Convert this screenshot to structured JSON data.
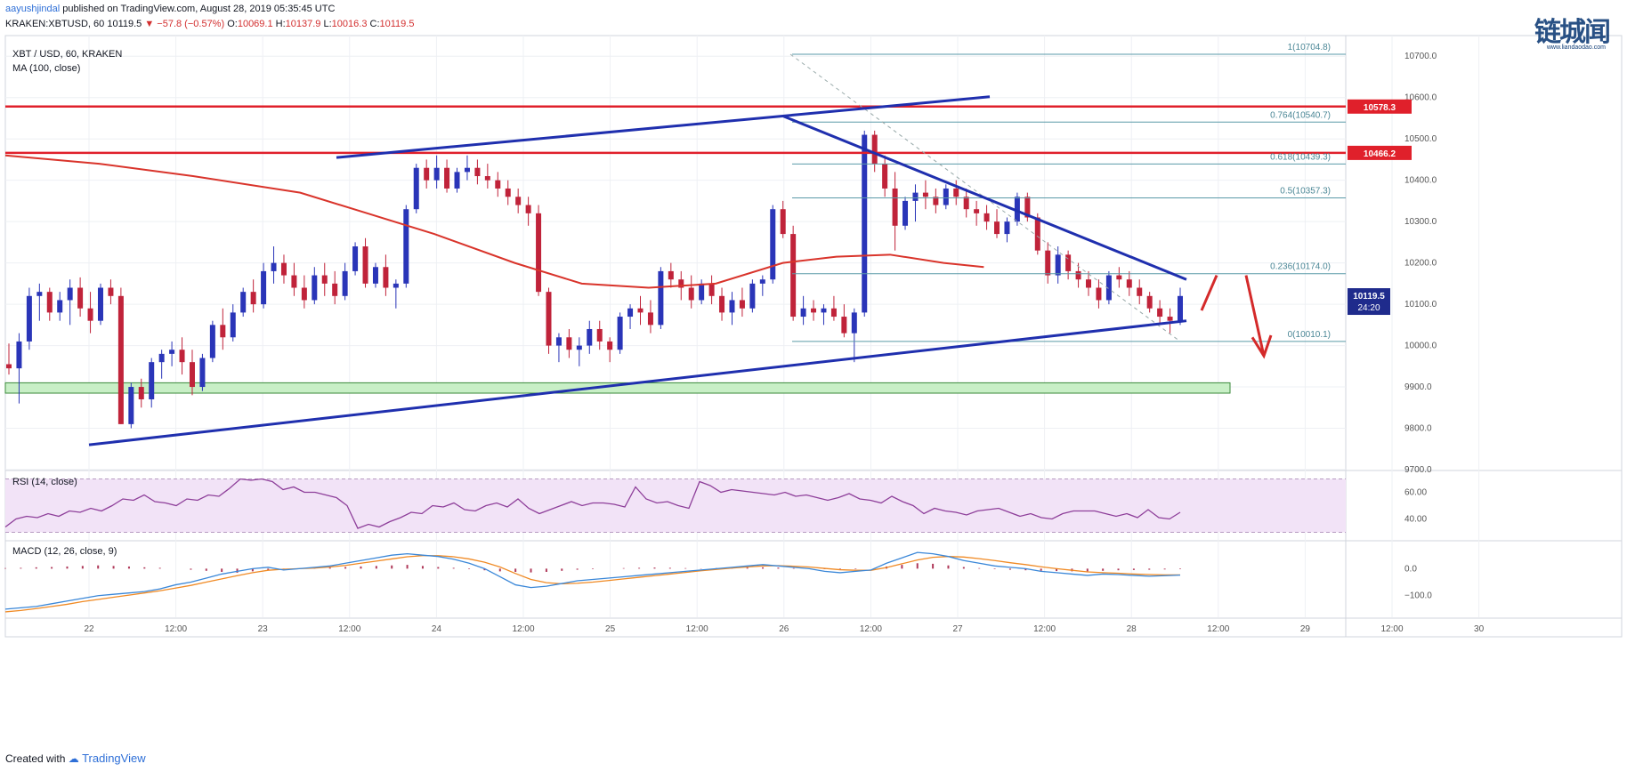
{
  "header": {
    "author": "aayushjindal",
    "published_text": "published on TradingView.com, August 28, 2019 05:35:45 UTC",
    "symbol": "KRAKEN:XBTUSD, 60",
    "last": "10119.5",
    "change": "−57.8 (−0.57%)",
    "change_arrow": "▼",
    "o_label": "O:",
    "o_value": "10069.1",
    "h_label": "H:",
    "h_value": "10137.9",
    "l_label": "L:",
    "l_value": "10016.3",
    "c_label": "C:",
    "c_value": "10119.5"
  },
  "legend": {
    "title": "XBT / USD, 60, KRAKEN",
    "ma": "MA (100, close)",
    "rsi": "RSI (14, close)",
    "macd": "MACD (12, 26, close, 9)"
  },
  "footer": {
    "created_with": "Created with",
    "brand": "TradingView"
  },
  "logo": {
    "text": "链城闻",
    "sub": "www.liandaodao.com"
  },
  "colors": {
    "up": "#2a35b8",
    "down": "#c0233a",
    "ma": "#d9342b",
    "trendline": "#1f2fae",
    "resistance": "#e0202b",
    "support_zone_fill": "#c8efc6",
    "support_zone_border": "#3a8a3a",
    "fib": "#5a9aa8",
    "rsi": "#8e3f9a",
    "rsi_band": "#f2e3f7",
    "macd": "#3a87d8",
    "signal": "#f08a24",
    "hist": "#b03a5a",
    "arrow": "#d42a2a"
  },
  "chart_data": [
    {
      "type": "candlestick",
      "name": "XBT / USD, 60, KRAKEN",
      "xlabels": [
        "22",
        "12:00",
        "23",
        "12:00",
        "24",
        "12:00",
        "25",
        "12:00",
        "26",
        "12:00",
        "27",
        "12:00",
        "28",
        "12:00",
        "29",
        "12:00",
        "30"
      ],
      "ylim": [
        9700,
        10750
      ],
      "yticks": [
        9700,
        9800,
        9900,
        10000,
        10100,
        10200,
        10300,
        10400,
        10500,
        10600,
        10700
      ],
      "ytick_labels": [
        "9700.0",
        "9800.0",
        "9900.0",
        "10000.0",
        "10100.0",
        "10200.0",
        "10300.0",
        "10400.0",
        "10500.0",
        "10600.0",
        "10700.0"
      ],
      "candles": [
        [
          9955,
          10005,
          9930,
          9945
        ],
        [
          9945,
          10030,
          9860,
          10010
        ],
        [
          10010,
          10140,
          9990,
          10120
        ],
        [
          10120,
          10150,
          10060,
          10130
        ],
        [
          10130,
          10140,
          10060,
          10080
        ],
        [
          10080,
          10130,
          10060,
          10110
        ],
        [
          10110,
          10160,
          10050,
          10140
        ],
        [
          10140,
          10165,
          10070,
          10090
        ],
        [
          10090,
          10130,
          10030,
          10060
        ],
        [
          10060,
          10150,
          10050,
          10140
        ],
        [
          10140,
          10160,
          10100,
          10120
        ],
        [
          10120,
          10140,
          9810,
          9810
        ],
        [
          9810,
          9910,
          9800,
          9900
        ],
        [
          9900,
          9920,
          9850,
          9870
        ],
        [
          9870,
          9970,
          9850,
          9960
        ],
        [
          9960,
          9990,
          9920,
          9980
        ],
        [
          9980,
          10010,
          9950,
          9990
        ],
        [
          9990,
          10020,
          9930,
          9960
        ],
        [
          9960,
          9990,
          9880,
          9900
        ],
        [
          9900,
          9980,
          9890,
          9970
        ],
        [
          9970,
          10060,
          9960,
          10050
        ],
        [
          10050,
          10090,
          9990,
          10020
        ],
        [
          10020,
          10100,
          10010,
          10080
        ],
        [
          10080,
          10140,
          10070,
          10130
        ],
        [
          10130,
          10160,
          10080,
          10100
        ],
        [
          10100,
          10200,
          10090,
          10180
        ],
        [
          10180,
          10240,
          10150,
          10200
        ],
        [
          10200,
          10220,
          10150,
          10170
        ],
        [
          10170,
          10200,
          10120,
          10140
        ],
        [
          10140,
          10170,
          10090,
          10110
        ],
        [
          10110,
          10190,
          10100,
          10170
        ],
        [
          10170,
          10200,
          10120,
          10150
        ],
        [
          10150,
          10180,
          10100,
          10120
        ],
        [
          10120,
          10200,
          10110,
          10180
        ],
        [
          10180,
          10250,
          10170,
          10240
        ],
        [
          10240,
          10260,
          10140,
          10150
        ],
        [
          10150,
          10200,
          10140,
          10190
        ],
        [
          10190,
          10220,
          10120,
          10140
        ],
        [
          10140,
          10160,
          10090,
          10150
        ],
        [
          10150,
          10340,
          10140,
          10330
        ],
        [
          10330,
          10440,
          10320,
          10430
        ],
        [
          10430,
          10450,
          10380,
          10400
        ],
        [
          10400,
          10460,
          10380,
          10430
        ],
        [
          10430,
          10450,
          10370,
          10380
        ],
        [
          10380,
          10430,
          10370,
          10420
        ],
        [
          10420,
          10460,
          10400,
          10430
        ],
        [
          10430,
          10450,
          10390,
          10410
        ],
        [
          10410,
          10440,
          10380,
          10400
        ],
        [
          10400,
          10420,
          10360,
          10380
        ],
        [
          10380,
          10400,
          10340,
          10360
        ],
        [
          10360,
          10380,
          10320,
          10340
        ],
        [
          10340,
          10360,
          10290,
          10320
        ],
        [
          10320,
          10340,
          10120,
          10130
        ],
        [
          10130,
          10140,
          9980,
          10000
        ],
        [
          10000,
          10030,
          9960,
          10020
        ],
        [
          10020,
          10040,
          9970,
          9990
        ],
        [
          9990,
          10020,
          9950,
          10000
        ],
        [
          10000,
          10060,
          9980,
          10040
        ],
        [
          10040,
          10060,
          9990,
          10010
        ],
        [
          10010,
          10020,
          9960,
          9990
        ],
        [
          9990,
          10080,
          9980,
          10070
        ],
        [
          10070,
          10100,
          10040,
          10090
        ],
        [
          10090,
          10120,
          10050,
          10080
        ],
        [
          10080,
          10110,
          10030,
          10050
        ],
        [
          10050,
          10190,
          10040,
          10180
        ],
        [
          10180,
          10200,
          10140,
          10160
        ],
        [
          10160,
          10180,
          10110,
          10140
        ],
        [
          10140,
          10170,
          10090,
          10110
        ],
        [
          10110,
          10160,
          10100,
          10150
        ],
        [
          10150,
          10170,
          10100,
          10120
        ],
        [
          10120,
          10140,
          10060,
          10080
        ],
        [
          10080,
          10130,
          10050,
          10110
        ],
        [
          10110,
          10140,
          10070,
          10090
        ],
        [
          10090,
          10160,
          10080,
          10150
        ],
        [
          10150,
          10170,
          10120,
          10160
        ],
        [
          10160,
          10340,
          10150,
          10330
        ],
        [
          10330,
          10350,
          10260,
          10270
        ],
        [
          10270,
          10290,
          10060,
          10070
        ],
        [
          10070,
          10120,
          10050,
          10090
        ],
        [
          10090,
          10110,
          10060,
          10080
        ],
        [
          10080,
          10100,
          10050,
          10090
        ],
        [
          10090,
          10120,
          10060,
          10070
        ],
        [
          10070,
          10100,
          10020,
          10030
        ],
        [
          10030,
          10090,
          9960,
          10080
        ],
        [
          10080,
          10520,
          10070,
          10510
        ],
        [
          10510,
          10520,
          10420,
          10440
        ],
        [
          10440,
          10460,
          10360,
          10380
        ],
        [
          10380,
          10420,
          10230,
          10290
        ],
        [
          10290,
          10360,
          10280,
          10350
        ],
        [
          10350,
          10390,
          10300,
          10370
        ],
        [
          10370,
          10400,
          10330,
          10360
        ],
        [
          10360,
          10380,
          10320,
          10340
        ],
        [
          10340,
          10390,
          10330,
          10380
        ],
        [
          10380,
          10400,
          10340,
          10360
        ],
        [
          10360,
          10380,
          10310,
          10330
        ],
        [
          10330,
          10350,
          10290,
          10320
        ],
        [
          10320,
          10340,
          10280,
          10300
        ],
        [
          10300,
          10330,
          10260,
          10270
        ],
        [
          10270,
          10310,
          10250,
          10300
        ],
        [
          10300,
          10370,
          10290,
          10360
        ],
        [
          10360,
          10370,
          10300,
          10310
        ],
        [
          10310,
          10320,
          10220,
          10230
        ],
        [
          10230,
          10250,
          10150,
          10170
        ],
        [
          10170,
          10240,
          10150,
          10220
        ],
        [
          10220,
          10230,
          10160,
          10180
        ],
        [
          10180,
          10200,
          10140,
          10160
        ],
        [
          10160,
          10180,
          10120,
          10140
        ],
        [
          10140,
          10160,
          10090,
          10110
        ],
        [
          10110,
          10180,
          10100,
          10170
        ],
        [
          10170,
          10190,
          10140,
          10160
        ],
        [
          10160,
          10180,
          10120,
          10140
        ],
        [
          10140,
          10160,
          10100,
          10120
        ],
        [
          10120,
          10130,
          10080,
          10090
        ],
        [
          10090,
          10110,
          10050,
          10070
        ],
        [
          10070,
          10090,
          10030,
          10060
        ],
        [
          10060,
          10140,
          10050,
          10120
        ]
      ],
      "ma100": [
        [
          0,
          10460
        ],
        [
          0.07,
          10440
        ],
        [
          0.14,
          10410
        ],
        [
          0.22,
          10370
        ],
        [
          0.27,
          10320
        ],
        [
          0.32,
          10270
        ],
        [
          0.38,
          10200
        ],
        [
          0.43,
          10150
        ],
        [
          0.48,
          10140
        ],
        [
          0.53,
          10150
        ],
        [
          0.58,
          10200
        ],
        [
          0.62,
          10215
        ],
        [
          0.66,
          10220
        ],
        [
          0.7,
          10200
        ],
        [
          0.73,
          10190
        ]
      ],
      "hlines": [
        {
          "label": "10578.3",
          "value": 10578.3
        },
        {
          "label": "10466.2",
          "value": 10466.2
        }
      ],
      "fib_levels": [
        {
          "label": "1(10704.8)",
          "value": 10704.8
        },
        {
          "label": "0.764(10540.7)",
          "value": 10540.7
        },
        {
          "label": "0.618(10439.3)",
          "value": 10439.3
        },
        {
          "label": "0.5(10357.3)",
          "value": 10357.3
        },
        {
          "label": "0.236(10174.0)",
          "value": 10174.0
        },
        {
          "label": "0(10010.1)",
          "value": 10010.1
        }
      ],
      "support_zone": [
        9885,
        9910
      ],
      "current_price": "10119.5",
      "countdown": "24:20"
    },
    {
      "type": "line",
      "name": "RSI (14, close)",
      "ylim": [
        25,
        75
      ],
      "yticks": [
        40,
        60
      ],
      "ytick_labels": [
        "40.00",
        "60.00"
      ],
      "band": [
        30,
        70
      ],
      "values": [
        34,
        40,
        42,
        41,
        44,
        42,
        46,
        45,
        48,
        46,
        50,
        55,
        54,
        58,
        53,
        52,
        50,
        55,
        54,
        58,
        57,
        63,
        70,
        69,
        70,
        68,
        62,
        64,
        60,
        60,
        58,
        56,
        50,
        33,
        36,
        34,
        38,
        41,
        45,
        44,
        50,
        49,
        52,
        47,
        46,
        50,
        52,
        49,
        55,
        48,
        44,
        47,
        50,
        53,
        50,
        52,
        52,
        51,
        49,
        64,
        55,
        52,
        53,
        50,
        48,
        68,
        65,
        60,
        62,
        61,
        60,
        59,
        58,
        60,
        57,
        58,
        56,
        54,
        56,
        59,
        55,
        54,
        52,
        57,
        53,
        50,
        44,
        48,
        46,
        45,
        43,
        46,
        47,
        48,
        45,
        42,
        44,
        41,
        40,
        44,
        46,
        46,
        46,
        44,
        42,
        44,
        41,
        47,
        41,
        40,
        45
      ]
    },
    {
      "type": "line",
      "name": "MACD (12, 26, close, 9)",
      "ylim": [
        -180,
        100
      ],
      "yticks": [
        0,
        -100
      ],
      "ytick_labels": [
        "0.0",
        "−100.0"
      ],
      "macd": [
        -150,
        -145,
        -140,
        -130,
        -120,
        -110,
        -100,
        -95,
        -90,
        -85,
        -75,
        -60,
        -50,
        -35,
        -20,
        -10,
        0,
        5,
        -5,
        0,
        5,
        10,
        20,
        30,
        40,
        50,
        55,
        50,
        45,
        35,
        20,
        0,
        -30,
        -60,
        -70,
        -65,
        -55,
        -45,
        -40,
        -35,
        -30,
        -25,
        -20,
        -15,
        -10,
        -5,
        0,
        5,
        10,
        15,
        10,
        5,
        0,
        -10,
        -15,
        -10,
        -5,
        20,
        40,
        60,
        55,
        45,
        30,
        20,
        10,
        5,
        0,
        -10,
        -15,
        -20,
        -25,
        -20,
        -22,
        -25,
        -28,
        -26,
        -24
      ],
      "signal": [
        -160,
        -155,
        -148,
        -140,
        -132,
        -122,
        -114,
        -106,
        -98,
        -90,
        -82,
        -72,
        -62,
        -50,
        -38,
        -26,
        -15,
        -6,
        -2,
        0,
        2,
        6,
        12,
        20,
        28,
        36,
        44,
        48,
        48,
        44,
        36,
        24,
        6,
        -18,
        -40,
        -52,
        -56,
        -54,
        -50,
        -44,
        -38,
        -32,
        -26,
        -20,
        -14,
        -8,
        -3,
        2,
        6,
        10,
        11,
        9,
        6,
        1,
        -4,
        -6,
        -6,
        4,
        18,
        32,
        42,
        45,
        43,
        37,
        30,
        22,
        15,
        7,
        0,
        -6,
        -12,
        -15,
        -17,
        -20,
        -22,
        -23,
        -23
      ],
      "hist": [
        2,
        3,
        5,
        6,
        8,
        10,
        12,
        10,
        8,
        5,
        3,
        0,
        -4,
        -8,
        -12,
        -15,
        -10,
        -6,
        -3,
        0,
        2,
        4,
        6,
        8,
        10,
        12,
        14,
        10,
        6,
        3,
        -2,
        -6,
        -10,
        -12,
        -14,
        -12,
        -8,
        -4,
        -2,
        0,
        2,
        3,
        4,
        3,
        2,
        1,
        2,
        3,
        4,
        5,
        4,
        2,
        0,
        -2,
        -3,
        -2,
        0,
        8,
        14,
        20,
        18,
        12,
        6,
        2,
        -2,
        -4,
        -6,
        -8,
        -9,
        -10,
        -10,
        -8,
        -6,
        -5,
        -4,
        -3,
        -2
      ]
    }
  ]
}
